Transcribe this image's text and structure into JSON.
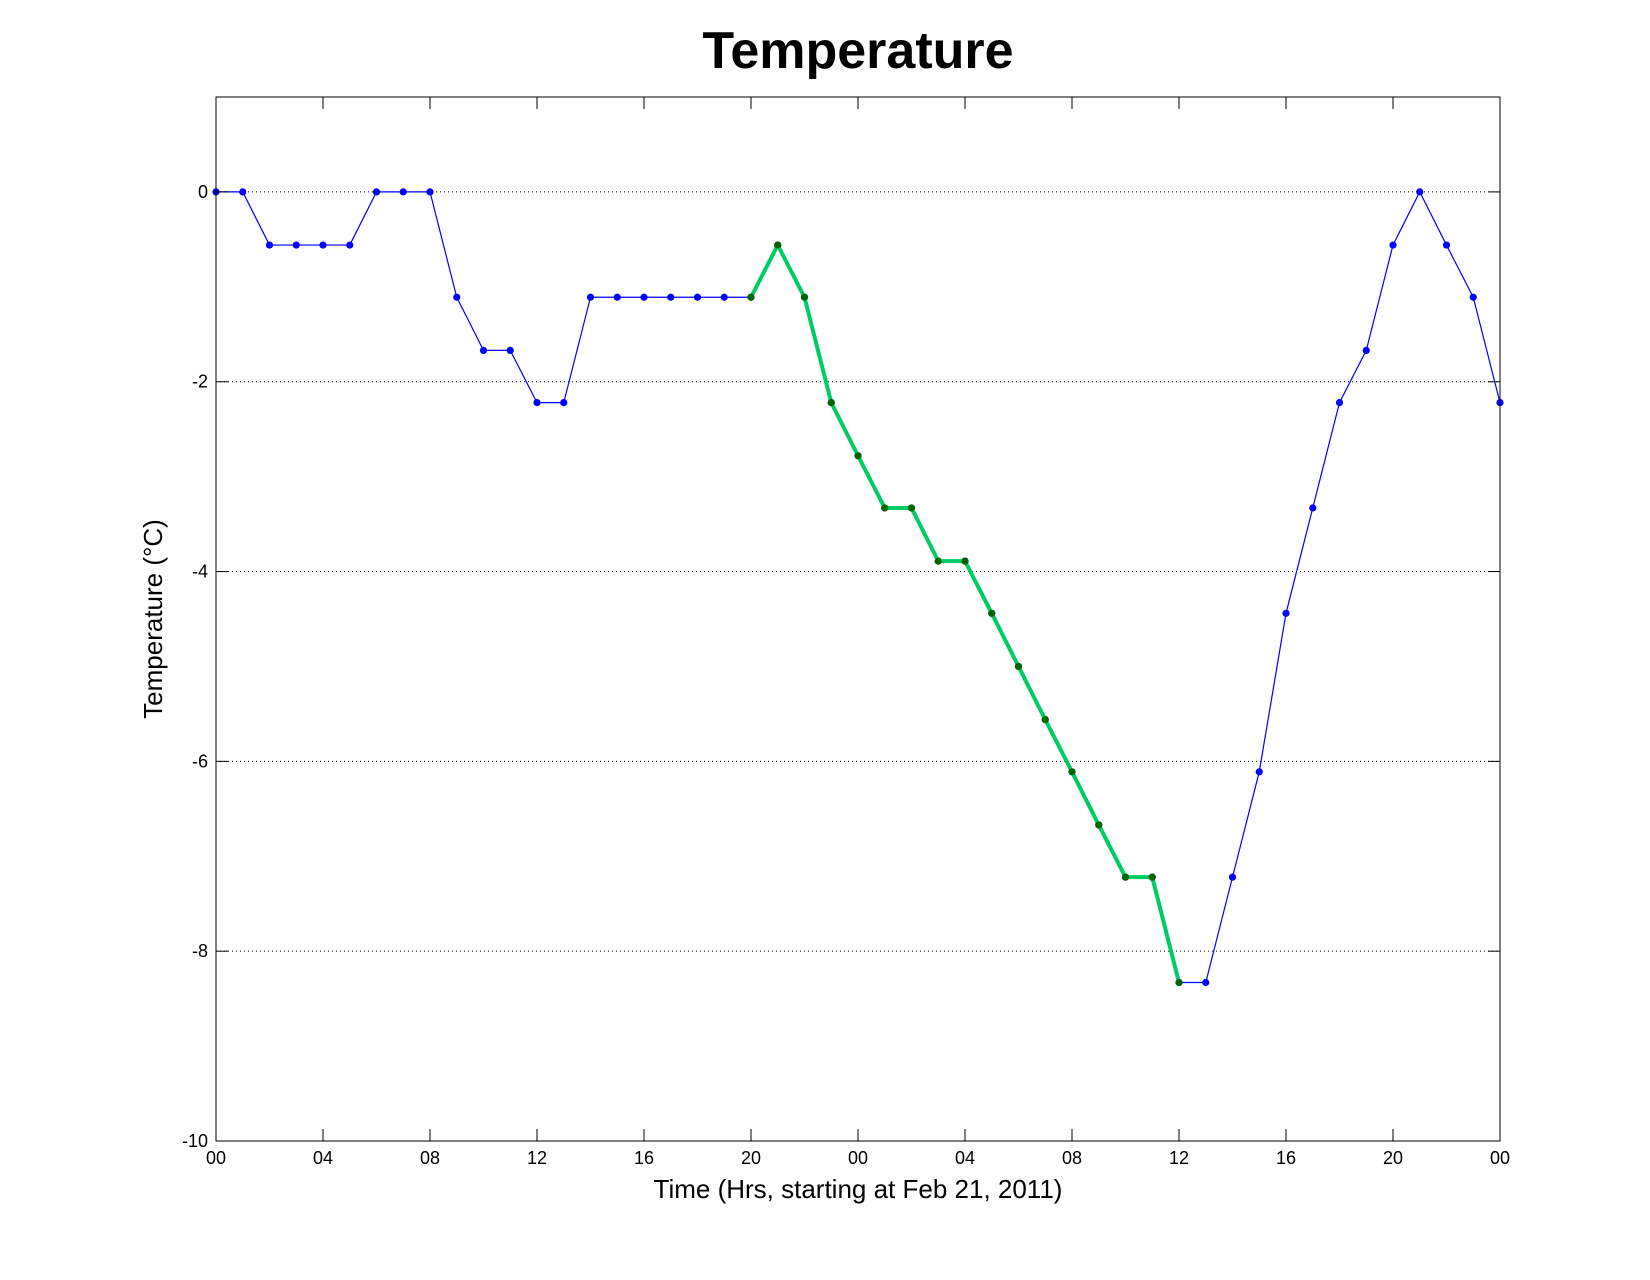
{
  "chart_data": {
    "type": "line",
    "title": "Temperature",
    "xlabel": "Time (Hrs, starting at Feb 21, 2011)",
    "ylabel": "Temperature (°C)",
    "xlim": [
      0,
      48
    ],
    "ylim": [
      -10,
      1
    ],
    "grid": "y-dotted",
    "x_ticks": [
      {
        "x": 0,
        "label": "00"
      },
      {
        "x": 4,
        "label": "04"
      },
      {
        "x": 8,
        "label": "08"
      },
      {
        "x": 12,
        "label": "12"
      },
      {
        "x": 16,
        "label": "16"
      },
      {
        "x": 20,
        "label": "20"
      },
      {
        "x": 24,
        "label": "00"
      },
      {
        "x": 28,
        "label": "04"
      },
      {
        "x": 32,
        "label": "08"
      },
      {
        "x": 36,
        "label": "12"
      },
      {
        "x": 40,
        "label": "16"
      },
      {
        "x": 44,
        "label": "20"
      },
      {
        "x": 48,
        "label": "00"
      }
    ],
    "y_ticks": [
      {
        "y": 0,
        "label": "0"
      },
      {
        "y": -2,
        "label": "-2"
      },
      {
        "y": -4,
        "label": "-4"
      },
      {
        "y": -6,
        "label": "-6"
      },
      {
        "y": -8,
        "label": "-8"
      },
      {
        "y": -10,
        "label": "-10"
      }
    ],
    "series": [
      {
        "color": "#0000ff",
        "marker_color": "#0000ff",
        "style": "thin-line-with-dots",
        "x": [
          0,
          1,
          2,
          3,
          4,
          5,
          6,
          7,
          8,
          9,
          10,
          11,
          12,
          13,
          14,
          15,
          16,
          17,
          18,
          19,
          20,
          21,
          22,
          23,
          24,
          25,
          26,
          27,
          28,
          29,
          30,
          31,
          32,
          33,
          34,
          35,
          36,
          37,
          38,
          39,
          40,
          41,
          42,
          43,
          44,
          45,
          46,
          47,
          48
        ],
        "y": [
          0,
          0,
          -0.56,
          -0.56,
          -0.56,
          -0.56,
          0,
          0,
          0,
          -1.11,
          -1.67,
          -1.67,
          -2.22,
          -2.22,
          -1.11,
          -1.11,
          -1.11,
          -1.11,
          -1.11,
          -1.11,
          -1.11,
          -0.56,
          -1.11,
          -2.22,
          -2.78,
          -3.33,
          -3.33,
          -3.89,
          -3.89,
          -4.44,
          -5.0,
          -5.56,
          -6.11,
          -6.67,
          -7.22,
          -7.22,
          -8.33,
          -8.33,
          -7.22,
          -6.11,
          -4.44,
          -3.33,
          -2.22,
          -1.67,
          -0.56,
          0,
          -0.56,
          -1.11,
          -2.22
        ]
      },
      {
        "color": "#00cc66",
        "marker_color": "#006600",
        "style": "thick-line-highlight",
        "x": [
          20,
          21,
          22,
          23,
          24,
          25,
          26,
          27,
          28,
          29,
          30,
          31,
          32,
          33,
          34,
          35,
          36
        ],
        "y": [
          -1.11,
          -0.56,
          -1.11,
          -2.22,
          -2.78,
          -3.33,
          -3.33,
          -3.89,
          -3.89,
          -4.44,
          -5.0,
          -5.56,
          -6.11,
          -6.67,
          -7.22,
          -7.22,
          -8.33
        ]
      }
    ]
  }
}
